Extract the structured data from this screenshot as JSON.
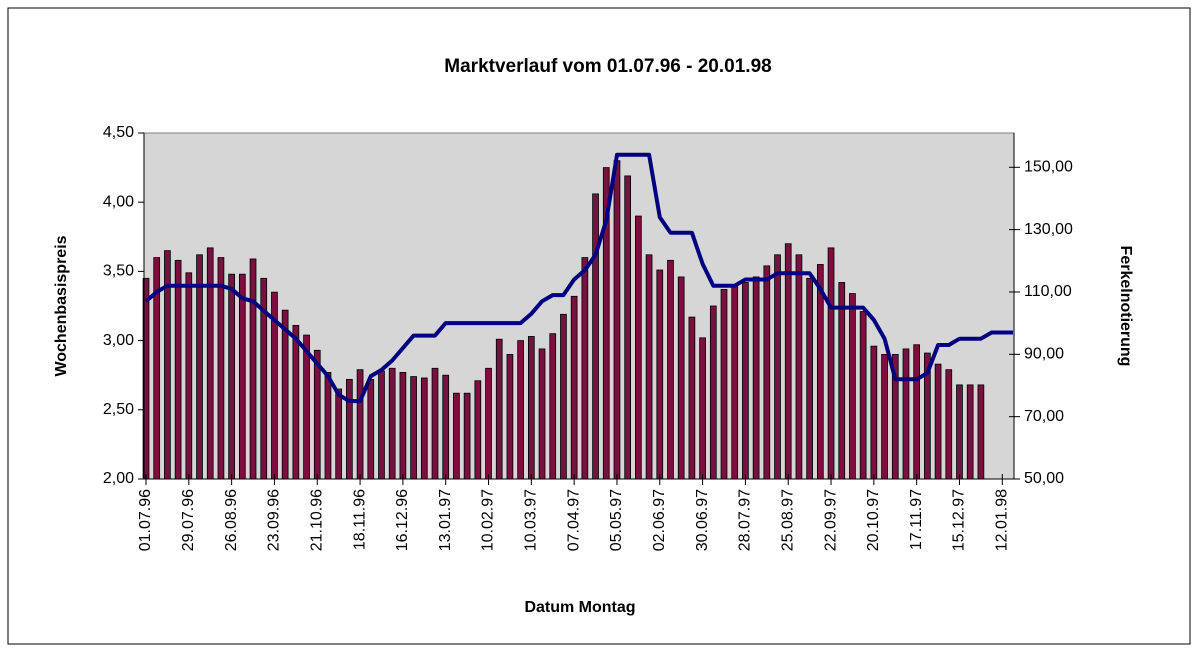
{
  "chart_data": {
    "type": "bar_line",
    "title": "Marktverlauf vom 01.07.96 - 20.01.98",
    "x_label": "Datum Montag",
    "y_label": "Wochenbasispreis",
    "y2_label": "Ferkelnotierung",
    "categories": [
      "01.07.96",
      null,
      null,
      null,
      "29.07.96",
      null,
      null,
      null,
      "26.08.96",
      null,
      null,
      null,
      "23.09.96",
      null,
      null,
      null,
      "21.10.96",
      null,
      null,
      null,
      "18.11.96",
      null,
      null,
      null,
      "16.12.96",
      null,
      null,
      null,
      "13.01.97",
      null,
      null,
      null,
      "10.02.97",
      null,
      null,
      null,
      "10.03.97",
      null,
      null,
      null,
      "07.04.97",
      null,
      null,
      null,
      "05.05.97",
      null,
      null,
      null,
      "02.06.97",
      null,
      null,
      null,
      "30.06.97",
      null,
      null,
      null,
      "28.07.97",
      null,
      null,
      null,
      "25.08.97",
      null,
      null,
      null,
      "22.09.97",
      null,
      null,
      null,
      "20.10.97",
      null,
      null,
      null,
      "17.11.97",
      null,
      null,
      null,
      "15.12.97",
      null,
      null,
      null,
      "12.01.98",
      null
    ],
    "series": [
      {
        "name": "Wochenbasispreis",
        "type": "bar",
        "color": "#7a1040",
        "values": [
          3.45,
          3.6,
          3.65,
          3.58,
          3.49,
          3.62,
          3.67,
          3.6,
          3.48,
          3.48,
          3.59,
          3.45,
          3.35,
          3.22,
          3.11,
          3.04,
          2.93,
          2.77,
          2.65,
          2.72,
          2.79,
          2.72,
          2.78,
          2.8,
          2.77,
          2.74,
          2.73,
          2.8,
          2.75,
          2.62,
          2.62,
          2.71,
          2.8,
          3.01,
          2.9,
          3.0,
          3.03,
          2.94,
          3.05,
          3.19,
          3.32,
          3.6,
          4.06,
          4.25,
          4.3,
          4.19,
          3.9,
          3.62,
          3.51,
          3.58,
          3.46,
          3.17,
          3.02,
          3.25,
          3.37,
          3.4,
          3.42,
          3.46,
          3.54,
          3.62,
          3.7,
          3.62,
          3.45,
          3.55,
          3.67,
          3.42,
          3.34,
          3.21,
          2.96,
          2.9,
          2.9,
          2.94,
          2.97,
          2.91,
          2.83,
          2.79,
          2.68,
          2.68,
          2.68,
          null,
          null,
          null
        ]
      },
      {
        "name": "Ferkelnotierung",
        "type": "line",
        "axis": "y2",
        "color": "#000080",
        "values": [
          107,
          110,
          112,
          112,
          112,
          112,
          112,
          112,
          111,
          108,
          107,
          104,
          101,
          98,
          95,
          91,
          87,
          83,
          77,
          75,
          75,
          83,
          85,
          88,
          92,
          96,
          96,
          96,
          100,
          100,
          100,
          100,
          100,
          100,
          100,
          100,
          103,
          107,
          109,
          109,
          114,
          117,
          122,
          133,
          154,
          154,
          154,
          154,
          134,
          129,
          129,
          129,
          119,
          112,
          112,
          112,
          114,
          114,
          114,
          116,
          116,
          116,
          116,
          111,
          105,
          105,
          105,
          105,
          101,
          95,
          82,
          82,
          82,
          84,
          93,
          93,
          95,
          95,
          95,
          97,
          97,
          97
        ]
      }
    ],
    "ylim": [
      2.0,
      4.5
    ],
    "yticks": [
      {
        "value": 2.0,
        "label": "2,00"
      },
      {
        "value": 2.5,
        "label": "2,50"
      },
      {
        "value": 3.0,
        "label": "3,00"
      },
      {
        "value": 3.5,
        "label": "3,50"
      },
      {
        "value": 4.0,
        "label": "4,00"
      },
      {
        "value": 4.5,
        "label": "4,50"
      }
    ],
    "y2lim": [
      50,
      161
    ],
    "y2ticks": [
      {
        "value": 50,
        "label": "50,00"
      },
      {
        "value": 70,
        "label": "70,00"
      },
      {
        "value": 90,
        "label": "90,00"
      },
      {
        "value": 110,
        "label": "110,00"
      },
      {
        "value": 130,
        "label": "130,00"
      },
      {
        "value": 150,
        "label": "150,00"
      }
    ],
    "plot_background": "#d6d6d6"
  }
}
